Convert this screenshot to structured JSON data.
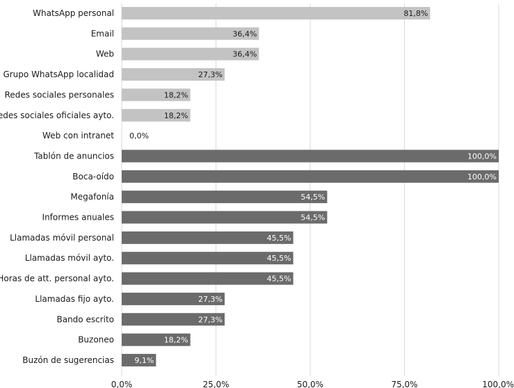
{
  "chart_data": {
    "type": "bar",
    "orientation": "horizontal",
    "categories": [
      "WhatsApp personal",
      "Email",
      "Web",
      "Grupo WhatsApp localidad",
      "Redes sociales personales",
      "Redes sociales oficiales ayto.",
      "Web con intranet",
      "Tablón de anuncios",
      "Boca-oído",
      "Megafonía",
      "Informes anuales",
      "Llamadas móvil personal",
      "Llamadas móvil ayto.",
      "Horas de att. personal ayto.",
      "Llamadas fijo ayto.",
      "Bando escrito",
      "Buzoneo",
      "Buzón de sugerencias"
    ],
    "values": [
      81.8,
      36.4,
      36.4,
      27.3,
      18.2,
      18.2,
      0.0,
      100.0,
      100.0,
      54.5,
      54.5,
      45.5,
      45.5,
      45.5,
      27.3,
      27.3,
      18.2,
      9.1
    ],
    "value_labels": [
      "81,8%",
      "36,4%",
      "36,4%",
      "27,3%",
      "18,2%",
      "18,2%",
      "0,0%",
      "100,0%",
      "100,0%",
      "54,5%",
      "54,5%",
      "45,5%",
      "45,5%",
      "45,5%",
      "27,3%",
      "27,3%",
      "18,2%",
      "9,1%"
    ],
    "bar_group": [
      "light",
      "light",
      "light",
      "light",
      "light",
      "light",
      "light",
      "dark",
      "dark",
      "dark",
      "dark",
      "dark",
      "dark",
      "dark",
      "dark",
      "dark",
      "dark",
      "dark"
    ],
    "colors": {
      "light": "#c3c3c3",
      "dark": "#6b6b6b",
      "grid": "#d9d9d9",
      "light_text": "#1a1a1a",
      "dark_text": "#ffffff"
    },
    "xlim": [
      0,
      100
    ],
    "x_ticks": [
      0,
      25,
      50,
      75,
      100
    ],
    "x_tick_labels": [
      "0,0%",
      "25,0%",
      "50,0%",
      "75,0%",
      "100,0%"
    ],
    "grid": true,
    "title": "",
    "xlabel": "",
    "ylabel": ""
  }
}
